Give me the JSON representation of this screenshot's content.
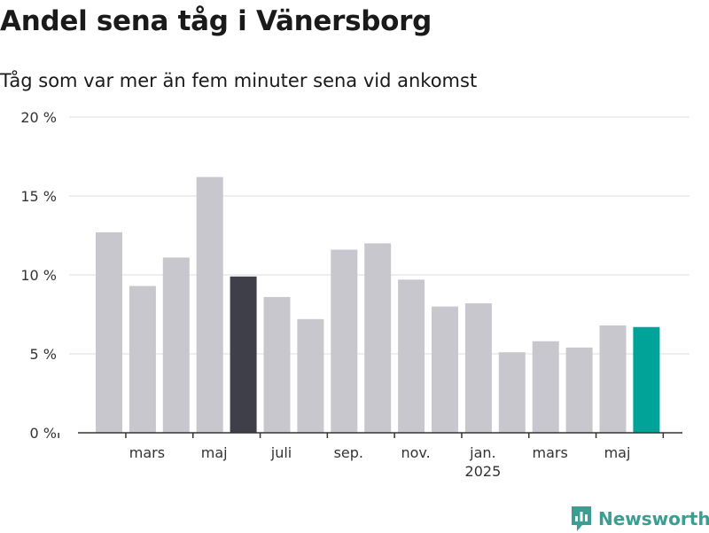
{
  "title": "Andel sena tåg i Vänersborg",
  "subtitle": "Tåg som var mer än fem minuter sena vid ankomst",
  "brand": {
    "name": "Newsworthy",
    "color": "#3a9e92",
    "icon": "bar-chart-icon"
  },
  "colors": {
    "default": "#c8c7ce",
    "highlight_dark": "#3f3f4a",
    "highlight_teal": "#00a398",
    "grid": "#dddddd",
    "axis": "#333333"
  },
  "chart_data": {
    "type": "bar",
    "title": "Andel sena tåg i Vänersborg",
    "subtitle": "Tåg som var mer än fem minuter sena vid ankomst",
    "xlabel": "",
    "ylabel": "",
    "ylim": [
      0,
      20
    ],
    "yticks": [
      0,
      5,
      10,
      15,
      20
    ],
    "ytick_labels": [
      "0 %",
      "5 %",
      "10 %",
      "15 %",
      "20 %"
    ],
    "grid": true,
    "categories": [
      "2024-02",
      "2024-03",
      "2024-04",
      "2024-05",
      "2024-06",
      "2024-07",
      "2024-08",
      "2024-09",
      "2024-10",
      "2024-11",
      "2024-12",
      "2025-01",
      "2025-02",
      "2025-03",
      "2025-04",
      "2025-05",
      "2025-06"
    ],
    "values": [
      12.7,
      9.3,
      11.1,
      16.2,
      9.9,
      8.6,
      7.2,
      11.6,
      12.0,
      9.7,
      8.0,
      8.2,
      5.1,
      5.8,
      5.4,
      6.8,
      6.7
    ],
    "highlight": {
      "2024-06": "dark",
      "2025-06": "teal"
    },
    "xtick_labels": [
      {
        "category": "2024-03",
        "label": "mars"
      },
      {
        "category": "2024-05",
        "label": "maj"
      },
      {
        "category": "2024-07",
        "label": "juli"
      },
      {
        "category": "2024-09",
        "label": "sep."
      },
      {
        "category": "2024-11",
        "label": "nov."
      },
      {
        "category": "2025-01",
        "label": "jan.",
        "sublabel": "2025"
      },
      {
        "category": "2025-03",
        "label": "mars"
      },
      {
        "category": "2025-05",
        "label": "maj"
      }
    ]
  }
}
